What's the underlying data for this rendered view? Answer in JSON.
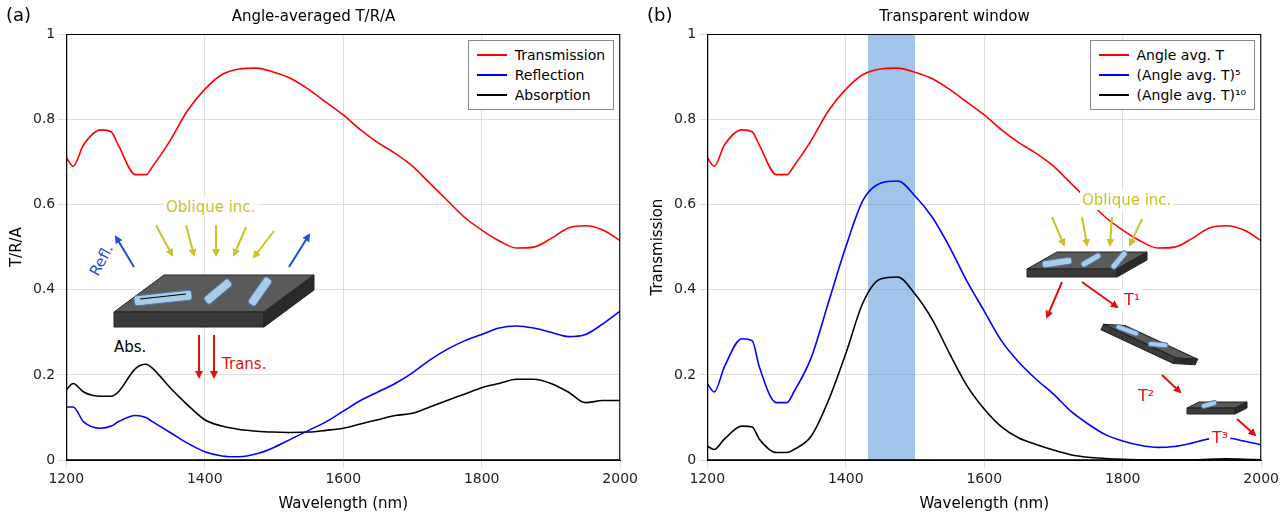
{
  "chart_data": [
    {
      "type": "line",
      "panel": "(a)",
      "title": "Angle-averaged T/R/A",
      "x_label": "Wavelength (nm)",
      "y_label": "T/R/A",
      "x": [
        1200,
        1210,
        1225,
        1250,
        1265,
        1275,
        1300,
        1315,
        1325,
        1350,
        1375,
        1400,
        1425,
        1450,
        1475,
        1500,
        1525,
        1550,
        1575,
        1600,
        1625,
        1650,
        1675,
        1700,
        1725,
        1750,
        1775,
        1800,
        1825,
        1850,
        1875,
        1900,
        1925,
        1950,
        1975,
        2000
      ],
      "series": [
        {
          "name": "Transmission",
          "color": "#ff0000",
          "values": [
            0.71,
            0.69,
            0.74,
            0.775,
            0.77,
            0.74,
            0.67,
            0.67,
            0.69,
            0.75,
            0.82,
            0.87,
            0.905,
            0.918,
            0.92,
            0.91,
            0.895,
            0.87,
            0.84,
            0.81,
            0.775,
            0.745,
            0.72,
            0.69,
            0.65,
            0.61,
            0.57,
            0.54,
            0.515,
            0.498,
            0.5,
            0.52,
            0.545,
            0.55,
            0.54,
            0.515
          ]
        },
        {
          "name": "Reflection",
          "color": "#0000ff",
          "values": [
            0.125,
            0.125,
            0.09,
            0.075,
            0.08,
            0.09,
            0.105,
            0.1,
            0.09,
            0.065,
            0.04,
            0.02,
            0.01,
            0.008,
            0.015,
            0.03,
            0.05,
            0.07,
            0.09,
            0.115,
            0.14,
            0.16,
            0.18,
            0.205,
            0.235,
            0.26,
            0.28,
            0.295,
            0.31,
            0.315,
            0.31,
            0.3,
            0.29,
            0.295,
            0.32,
            0.35
          ]
        },
        {
          "name": "Absorption",
          "color": "#000000",
          "values": [
            0.165,
            0.18,
            0.16,
            0.15,
            0.15,
            0.16,
            0.215,
            0.225,
            0.215,
            0.17,
            0.13,
            0.095,
            0.08,
            0.072,
            0.068,
            0.066,
            0.065,
            0.066,
            0.07,
            0.075,
            0.085,
            0.095,
            0.105,
            0.11,
            0.125,
            0.14,
            0.155,
            0.17,
            0.18,
            0.19,
            0.19,
            0.18,
            0.16,
            0.135,
            0.14,
            0.14
          ]
        }
      ],
      "xlim": [
        1200,
        2000
      ],
      "xticks": [
        1200,
        1400,
        1600,
        1800,
        2000
      ],
      "ylim": [
        0,
        1
      ],
      "yticks": [
        0,
        0.2,
        0.4,
        0.6,
        0.8,
        1
      ],
      "grid": true,
      "legend": "upper right",
      "inset_labels": [
        "Oblique inc.",
        "Refl.",
        "Abs.",
        "Trans."
      ]
    },
    {
      "type": "line",
      "panel": "(b)",
      "title": "Transparent window",
      "x_label": "Wavelength (nm)",
      "y_label": "Transmission",
      "x": [
        1200,
        1210,
        1225,
        1250,
        1265,
        1275,
        1300,
        1315,
        1325,
        1350,
        1375,
        1400,
        1425,
        1450,
        1475,
        1500,
        1525,
        1550,
        1575,
        1600,
        1625,
        1650,
        1675,
        1700,
        1725,
        1750,
        1775,
        1800,
        1825,
        1850,
        1875,
        1900,
        1925,
        1950,
        1975,
        2000
      ],
      "series": [
        {
          "name": "Angle avg. T",
          "color": "#ff0000",
          "values": [
            0.71,
            0.69,
            0.74,
            0.775,
            0.77,
            0.74,
            0.67,
            0.67,
            0.69,
            0.75,
            0.82,
            0.87,
            0.905,
            0.918,
            0.92,
            0.91,
            0.895,
            0.87,
            0.84,
            0.81,
            0.775,
            0.745,
            0.72,
            0.69,
            0.65,
            0.61,
            0.57,
            0.54,
            0.515,
            0.498,
            0.5,
            0.52,
            0.545,
            0.55,
            0.54,
            0.515
          ]
        },
        {
          "name": "(Angle avg. T)⁵",
          "color": "#0000ff",
          "values": [
            0.18,
            0.16,
            0.22,
            0.285,
            0.28,
            0.22,
            0.135,
            0.135,
            0.16,
            0.24,
            0.37,
            0.5,
            0.61,
            0.65,
            0.655,
            0.62,
            0.57,
            0.5,
            0.42,
            0.35,
            0.28,
            0.23,
            0.19,
            0.155,
            0.115,
            0.085,
            0.06,
            0.045,
            0.035,
            0.03,
            0.032,
            0.04,
            0.05,
            0.052,
            0.045,
            0.036
          ]
        },
        {
          "name": "(Angle avg. T)¹⁰",
          "color": "#000000",
          "values": [
            0.033,
            0.025,
            0.05,
            0.08,
            0.078,
            0.05,
            0.018,
            0.018,
            0.025,
            0.056,
            0.14,
            0.25,
            0.37,
            0.425,
            0.43,
            0.39,
            0.33,
            0.25,
            0.175,
            0.12,
            0.078,
            0.052,
            0.037,
            0.024,
            0.013,
            0.007,
            0.004,
            0.002,
            0.001,
            0.001,
            0.001,
            0.001,
            0.002,
            0.003,
            0.002,
            0.001
          ]
        }
      ],
      "xlim": [
        1200,
        2000
      ],
      "xticks": [
        1200,
        1400,
        1600,
        1800,
        2000
      ],
      "ylim": [
        0,
        1
      ],
      "yticks": [
        0,
        0.2,
        0.4,
        0.6,
        0.8,
        1
      ],
      "grid": true,
      "legend": "upper right",
      "shaded_band": [
        1432,
        1500
      ],
      "inset_labels": [
        "Oblique inc.",
        "T¹",
        "T²",
        "T³"
      ]
    }
  ]
}
